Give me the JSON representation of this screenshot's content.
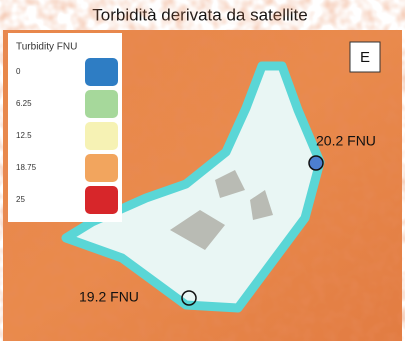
{
  "header": {
    "title": "Torbidità derivata da satellite"
  },
  "panel_label": "E",
  "legend": {
    "title": "Turbidity FNU",
    "items": [
      {
        "label": "0",
        "color": "#2e7dc4"
      },
      {
        "label": "6.25",
        "color": "#a6d89b"
      },
      {
        "label": "12.5",
        "color": "#f6f2b4"
      },
      {
        "label": "18.75",
        "color": "#f2a55e"
      },
      {
        "label": "25",
        "color": "#d7262a"
      }
    ]
  },
  "annotations": [
    {
      "label": "20.2 FNU",
      "marker_color": "#4d7fd0"
    },
    {
      "label": "19.2 FNU",
      "marker_color": "none"
    }
  ]
}
